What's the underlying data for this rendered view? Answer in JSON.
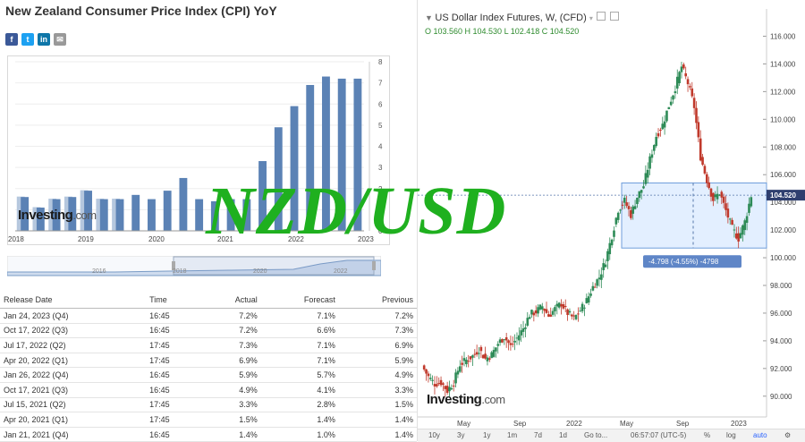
{
  "left_panel": {
    "title": "New Zealand Consumer Price Index (CPI) YoY",
    "share_icons": [
      "facebook-icon",
      "twitter-icon",
      "linkedin-icon",
      "email-icon"
    ],
    "logo_text": "Investing",
    "logo_suffix": ".com",
    "navigator_years": [
      "2016",
      "2018",
      "2020",
      "2022"
    ]
  },
  "table": {
    "headers": [
      "Release Date",
      "Time",
      "Actual",
      "Forecast",
      "Previous"
    ],
    "rows": [
      {
        "date": "Jan 24, 2023 (Q4)",
        "time": "16:45",
        "actual": "7.2%",
        "actual_color": "pos",
        "forecast": "7.1%",
        "previous": "7.2%"
      },
      {
        "date": "Oct 17, 2022 (Q3)",
        "time": "16:45",
        "actual": "7.2%",
        "actual_color": "pos",
        "forecast": "6.6%",
        "previous": "7.3%"
      },
      {
        "date": "Jul 17, 2022 (Q2)",
        "time": "17:45",
        "actual": "7.3%",
        "actual_color": "pos",
        "forecast": "7.1%",
        "previous": "6.9%"
      },
      {
        "date": "Apr 20, 2022 (Q1)",
        "time": "17:45",
        "actual": "6.9%",
        "actual_color": "neg",
        "forecast": "7.1%",
        "previous": "5.9%"
      },
      {
        "date": "Jan 26, 2022 (Q4)",
        "time": "16:45",
        "actual": "5.9%",
        "actual_color": "pos",
        "forecast": "5.7%",
        "previous": "4.9%"
      },
      {
        "date": "Oct 17, 2021 (Q3)",
        "time": "16:45",
        "actual": "4.9%",
        "actual_color": "pos",
        "forecast": "4.1%",
        "previous": "3.3%"
      },
      {
        "date": "Jul 15, 2021 (Q2)",
        "time": "17:45",
        "actual": "3.3%",
        "actual_color": "pos",
        "forecast": "2.8%",
        "previous": "1.5%"
      },
      {
        "date": "Apr 20, 2021 (Q1)",
        "time": "17:45",
        "actual": "1.5%",
        "actual_color": "pos",
        "forecast": "1.4%",
        "previous": "1.4%"
      },
      {
        "date": "Jan 21, 2021 (Q4)",
        "time": "16:45",
        "actual": "1.4%",
        "actual_color": "pos",
        "forecast": "1.0%",
        "previous": "1.4%"
      }
    ]
  },
  "right_panel": {
    "symbol_title": "US Dollar Index Futures, W, (CFD)",
    "ohlc": "O 103.560  H 104.530  L 102.418  C 104.520",
    "last_price": "104.520",
    "measure_label": "-4.798 (-4.55%) -4798",
    "logo_text": "Investing",
    "logo_suffix": ".com",
    "bottom_bar": {
      "ranges": [
        "10y",
        "3y",
        "1y",
        "1m",
        "7d",
        "1d",
        "Go to..."
      ],
      "clock": "06:57:07 (UTC-5)",
      "options": [
        "%",
        "log",
        "auto"
      ]
    }
  },
  "overlay_text": "NZD/USD",
  "chart_data": [
    {
      "type": "bar",
      "title": "",
      "x_tick_labels": [
        "2018",
        "2019",
        "2020",
        "2021",
        "2022",
        "2023"
      ],
      "y_ticks": [
        0,
        1,
        2,
        3,
        4,
        5,
        6,
        7,
        8
      ],
      "ylim": [
        0,
        8
      ],
      "series": [
        {
          "values": [
            1.6,
            1.1,
            1.5,
            1.6,
            1.9,
            1.5,
            1.5,
            1.7,
            1.5,
            1.9,
            2.5,
            1.5,
            1.4,
            1.5,
            1.5,
            3.3,
            4.9,
            5.9,
            6.9,
            7.3,
            7.2,
            7.2
          ]
        }
      ],
      "ghost_bars": [
        1.6,
        1.1,
        1.5,
        1.6,
        1.9,
        1.5,
        1.5
      ],
      "axis_position": "right",
      "colors": {
        "bar": "#5b82b5",
        "ghost": "#b5c7de"
      }
    },
    {
      "type": "candlestick",
      "title": "US Dollar Index Futures, W, (CFD)",
      "x_tick_labels": [
        "May",
        "Sep",
        "2022",
        "May",
        "Sep",
        "2023"
      ],
      "y_ticks": [
        90,
        92,
        94,
        96,
        98,
        100,
        102,
        104,
        106,
        108,
        110,
        112,
        114,
        116
      ],
      "ylim": [
        88.5,
        117
      ],
      "close_path": [
        92.2,
        91.4,
        90.9,
        91.0,
        90.4,
        91.0,
        92.3,
        92.6,
        92.9,
        93.4,
        92.7,
        93.0,
        93.8,
        94.3,
        93.6,
        94.2,
        94.9,
        95.9,
        96.1,
        96.5,
        95.8,
        96.3,
        96.7,
        96.0,
        95.6,
        96.2,
        96.9,
        97.9,
        98.6,
        99.8,
        101.6,
        103.5,
        104.1,
        103.1,
        104.4,
        105.2,
        107.1,
        108.8,
        109.6,
        111.0,
        112.3,
        113.8,
        112.6,
        110.9,
        107.3,
        105.6,
        104.2,
        104.7,
        103.4,
        102.1,
        101.4,
        102.6,
        104.5
      ],
      "measured_range": {
        "top": 105.4,
        "bottom": 100.7,
        "change": "-4.798 (-4.55%)"
      },
      "last_price": 104.52,
      "colors": {
        "up": "#2e8b57",
        "down": "#c0392b",
        "measure": "#e3efff"
      }
    }
  ],
  "colors": {
    "overlay": "#1fb01f",
    "positive": "#2ea02e",
    "negative": "#e02020",
    "bar": "#5b82b5"
  }
}
